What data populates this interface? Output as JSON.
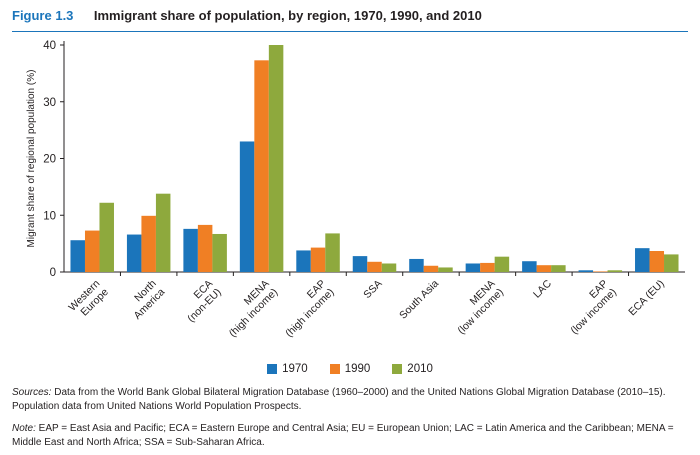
{
  "figure": {
    "number": "Figure 1.3",
    "title": "Immigrant share of population, by region, 1970, 1990, and 2010"
  },
  "chart_data": {
    "type": "bar",
    "ylabel": "Migrant share of regional population (%)",
    "xlabel": "",
    "ylim": [
      0,
      40
    ],
    "yticks": [
      0,
      10,
      20,
      30,
      40
    ],
    "grid": false,
    "legend_position": "bottom",
    "categories": [
      [
        "Western",
        "Europe"
      ],
      [
        "North",
        "America"
      ],
      [
        "ECA",
        "(non-EU)"
      ],
      [
        "MENA",
        "(high income)"
      ],
      [
        "EAP",
        "(high income)"
      ],
      [
        "SSA"
      ],
      [
        "South Asia"
      ],
      [
        "MENA",
        "(low income)"
      ],
      [
        "LAC"
      ],
      [
        "EAP",
        "(low income)"
      ],
      [
        "ECA (EU)"
      ]
    ],
    "series": [
      {
        "name": "1970",
        "color": "#1b75bb",
        "values": [
          5.6,
          6.6,
          7.6,
          23.0,
          3.8,
          2.8,
          2.3,
          1.5,
          1.9,
          0.3,
          4.2
        ]
      },
      {
        "name": "1990",
        "color": "#f07f24",
        "values": [
          7.3,
          9.9,
          8.3,
          37.3,
          4.3,
          1.8,
          1.1,
          1.6,
          1.2,
          0.1,
          3.7
        ]
      },
      {
        "name": "2010",
        "color": "#8ea93d",
        "values": [
          12.2,
          13.8,
          6.7,
          40.0,
          6.8,
          1.5,
          0.8,
          2.7,
          1.2,
          0.3,
          3.1
        ]
      }
    ]
  },
  "sources": {
    "label": "Sources:",
    "text": " Data from the World Bank Global Bilateral Migration Database (1960–2000) and the United Nations Global Migration Database (2010–15). Population data from United Nations World Population Prospects."
  },
  "note": {
    "label": "Note:",
    "text": " EAP = East Asia and Pacific; ECA = Eastern Europe and Central Asia; EU = European Union; LAC = Latin America and the Caribbean; MENA = Middle East and North Africa; SSA = Sub-Saharan Africa."
  }
}
